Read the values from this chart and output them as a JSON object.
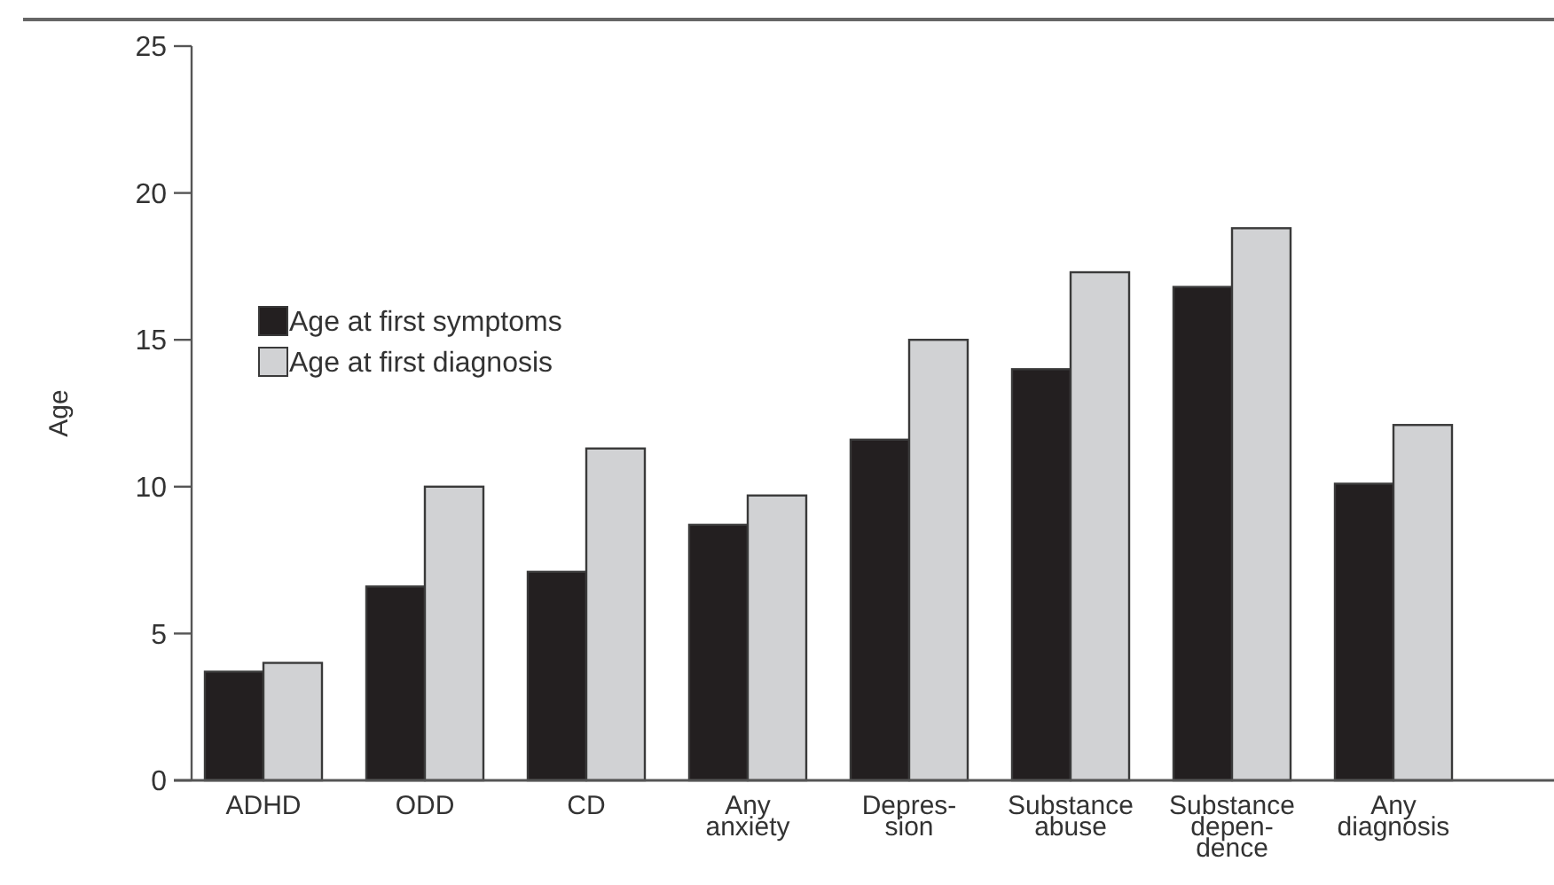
{
  "chart_data": {
    "type": "bar",
    "ylabel": "Age",
    "categories": [
      "ADHD",
      "ODD",
      "CD",
      "Any\nanxiety",
      "Depres-\nsion",
      "Substance\nabuse",
      "Substance\ndepen-\ndence",
      "Any\ndiagnosis"
    ],
    "series": [
      {
        "name": "Age at first symptoms",
        "color": "#231f20",
        "values": [
          3.7,
          6.6,
          7.1,
          8.7,
          11.6,
          14.0,
          16.8,
          10.1
        ]
      },
      {
        "name": "Age at first diagnosis",
        "color": "#d1d2d4",
        "values": [
          4.0,
          10.0,
          11.3,
          9.7,
          15.0,
          17.3,
          18.8,
          12.1
        ]
      }
    ],
    "ylim": [
      0,
      25
    ],
    "yticks": [
      0,
      5,
      10,
      15,
      20,
      25
    ],
    "grid": false,
    "legend": "top left"
  }
}
